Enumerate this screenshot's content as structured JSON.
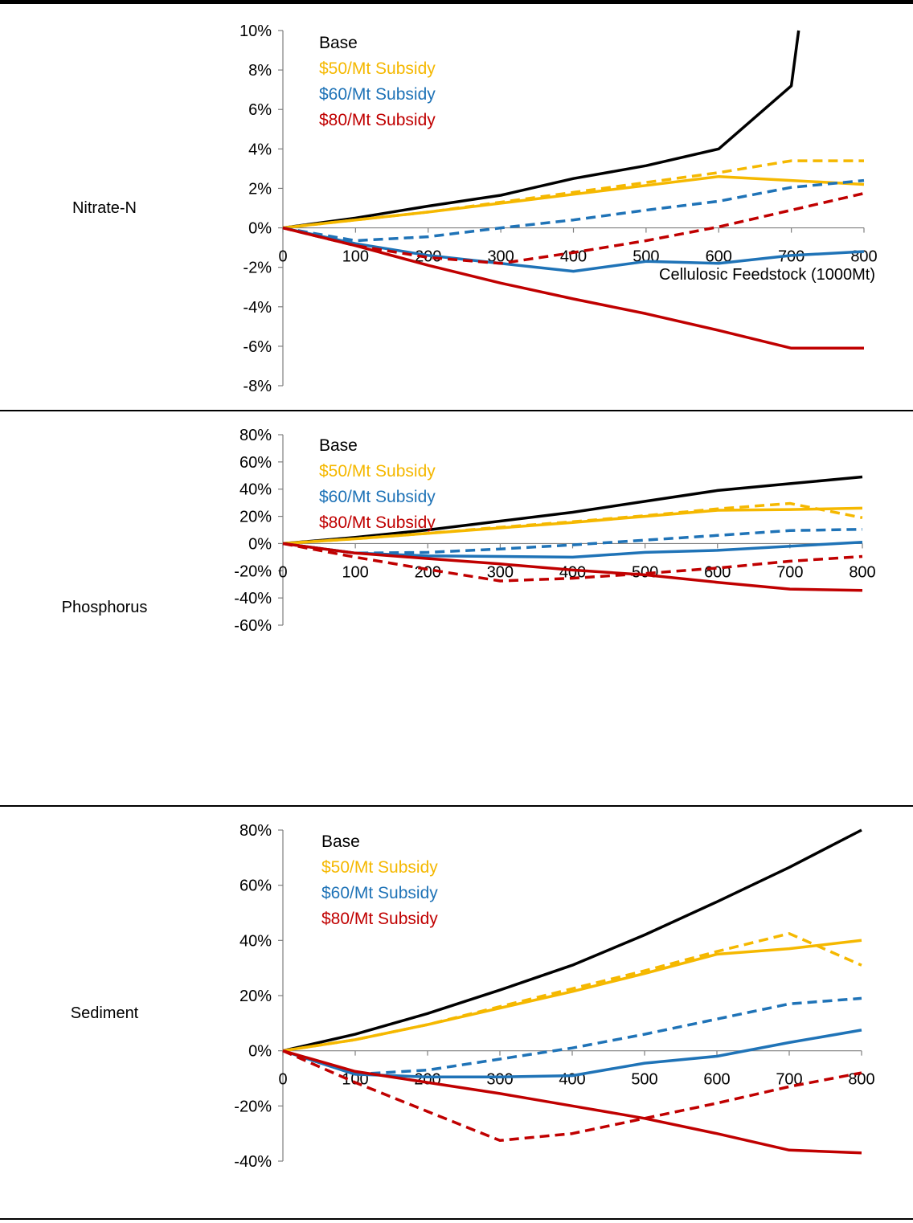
{
  "legend": [
    {
      "label": "Base",
      "color": "#000000"
    },
    {
      "label": "$50/Mt Subsidy",
      "color": "#F5B800"
    },
    {
      "label": "$60/Mt Subsidy",
      "color": "#1F73B7"
    },
    {
      "label": "$80/Mt Subsidy",
      "color": "#C00000"
    }
  ],
  "chart_data": [
    {
      "type": "line",
      "row_label": "Nitrate-N",
      "xlabel": "Cellulosic Feedstock (1000Mt)",
      "ylabel": "",
      "ylim": [
        -0.08,
        0.1
      ],
      "yticks": [
        -0.08,
        -0.06,
        -0.04,
        -0.02,
        0,
        0.02,
        0.04,
        0.06,
        0.08,
        0.1
      ],
      "ytick_labels": [
        "-8%",
        "-6%",
        "-4%",
        "-2%",
        "0%",
        "2%",
        "4%",
        "6%",
        "8%",
        "10%"
      ],
      "xticks": [
        0,
        100,
        200,
        300,
        400,
        500,
        600,
        700,
        800
      ],
      "xtick_labels": [
        "0",
        "100",
        "200",
        "300",
        "400",
        "500",
        "600",
        "700",
        "800"
      ],
      "series": [
        {
          "name": "Base",
          "color": "#000000",
          "dash": false,
          "x": [
            0,
            100,
            200,
            300,
            400,
            500,
            600,
            700,
            710
          ],
          "y": [
            0,
            0.005,
            0.011,
            0.0165,
            0.025,
            0.0315,
            0.04,
            0.072,
            0.1
          ]
        },
        {
          "name": "$50/Mt Subsidy",
          "color": "#F5B800",
          "dash": false,
          "x": [
            0,
            100,
            200,
            300,
            400,
            500,
            600,
            700,
            800
          ],
          "y": [
            0,
            0.004,
            0.008,
            0.0125,
            0.017,
            0.0215,
            0.026,
            0.024,
            0.022
          ]
        },
        {
          "name": "$50/Mt Subsidy",
          "color": "#F5B800",
          "dash": true,
          "x": [
            0,
            100,
            200,
            300,
            400,
            500,
            600,
            700,
            800
          ],
          "y": [
            0,
            0.004,
            0.008,
            0.013,
            0.018,
            0.023,
            0.028,
            0.034,
            0.034
          ]
        },
        {
          "name": "$60/Mt Subsidy",
          "color": "#1F73B7",
          "dash": false,
          "x": [
            0,
            100,
            200,
            300,
            400,
            500,
            600,
            700,
            800
          ],
          "y": [
            0,
            -0.008,
            -0.014,
            -0.018,
            -0.022,
            -0.017,
            -0.018,
            -0.014,
            -0.012
          ]
        },
        {
          "name": "$60/Mt Subsidy",
          "color": "#1F73B7",
          "dash": true,
          "x": [
            0,
            100,
            200,
            300,
            400,
            500,
            600,
            700,
            800
          ],
          "y": [
            0,
            -0.0065,
            -0.0045,
            0,
            0.004,
            0.009,
            0.0135,
            0.0205,
            0.024
          ]
        },
        {
          "name": "$80/Mt Subsidy",
          "color": "#C00000",
          "dash": false,
          "x": [
            0,
            100,
            200,
            300,
            400,
            500,
            600,
            700,
            800
          ],
          "y": [
            0,
            -0.009,
            -0.019,
            -0.028,
            -0.036,
            -0.0435,
            -0.052,
            -0.061,
            -0.061
          ]
        },
        {
          "name": "$80/Mt Subsidy",
          "color": "#C00000",
          "dash": true,
          "x": [
            0,
            100,
            200,
            300,
            400,
            500,
            600,
            700,
            800
          ],
          "y": [
            0,
            -0.009,
            -0.015,
            -0.018,
            -0.0125,
            -0.0065,
            0.0005,
            0.009,
            0.0175
          ]
        }
      ]
    },
    {
      "type": "line",
      "row_label": "Phosphorus",
      "xlabel": "",
      "ylabel": "",
      "ylim": [
        -0.6,
        0.8
      ],
      "yticks": [
        -0.6,
        -0.4,
        -0.2,
        0,
        0.2,
        0.4,
        0.6,
        0.8
      ],
      "ytick_labels": [
        "-60%",
        "-40%",
        "-20%",
        "0%",
        "20%",
        "40%",
        "60%",
        "80%"
      ],
      "xticks": [
        0,
        100,
        200,
        300,
        400,
        500,
        600,
        700,
        800
      ],
      "xtick_labels": [
        "0",
        "100",
        "200",
        "300",
        "400",
        "500",
        "600",
        "700",
        "800"
      ],
      "series": [
        {
          "name": "Base",
          "color": "#000000",
          "dash": false,
          "x": [
            0,
            100,
            200,
            300,
            400,
            500,
            600,
            700,
            800
          ],
          "y": [
            0,
            0.045,
            0.1,
            0.165,
            0.23,
            0.31,
            0.39,
            0.44,
            0.49
          ]
        },
        {
          "name": "$50/Mt Subsidy",
          "color": "#F5B800",
          "dash": false,
          "x": [
            0,
            100,
            200,
            300,
            400,
            500,
            600,
            700,
            800
          ],
          "y": [
            0,
            0.035,
            0.075,
            0.115,
            0.155,
            0.2,
            0.245,
            0.25,
            0.26
          ]
        },
        {
          "name": "$50/Mt Subsidy",
          "color": "#F5B800",
          "dash": true,
          "x": [
            0,
            100,
            200,
            300,
            400,
            500,
            600,
            700,
            800
          ],
          "y": [
            0,
            0.035,
            0.075,
            0.12,
            0.16,
            0.205,
            0.255,
            0.295,
            0.19
          ]
        },
        {
          "name": "$60/Mt Subsidy",
          "color": "#1F73B7",
          "dash": false,
          "x": [
            0,
            100,
            200,
            300,
            400,
            500,
            600,
            700,
            800
          ],
          "y": [
            0,
            -0.07,
            -0.09,
            -0.095,
            -0.1,
            -0.065,
            -0.05,
            -0.02,
            0.01
          ]
        },
        {
          "name": "$60/Mt Subsidy",
          "color": "#1F73B7",
          "dash": true,
          "x": [
            0,
            100,
            200,
            300,
            400,
            500,
            600,
            700,
            800
          ],
          "y": [
            0,
            -0.07,
            -0.065,
            -0.04,
            -0.01,
            0.025,
            0.06,
            0.095,
            0.105
          ]
        },
        {
          "name": "$80/Mt Subsidy",
          "color": "#C00000",
          "dash": false,
          "x": [
            0,
            100,
            200,
            300,
            400,
            500,
            600,
            700,
            800
          ],
          "y": [
            0,
            -0.07,
            -0.11,
            -0.15,
            -0.195,
            -0.23,
            -0.285,
            -0.335,
            -0.345
          ]
        },
        {
          "name": "$80/Mt Subsidy",
          "color": "#C00000",
          "dash": true,
          "x": [
            0,
            100,
            200,
            300,
            400,
            500,
            600,
            700,
            800
          ],
          "y": [
            0,
            -0.1,
            -0.19,
            -0.275,
            -0.255,
            -0.22,
            -0.18,
            -0.13,
            -0.095
          ]
        }
      ]
    },
    {
      "type": "line",
      "row_label": "Sediment",
      "xlabel": "",
      "ylabel": "",
      "ylim": [
        -0.4,
        0.8
      ],
      "yticks": [
        -0.4,
        -0.2,
        0,
        0.2,
        0.4,
        0.6,
        0.8
      ],
      "ytick_labels": [
        "-40%",
        "-20%",
        "0%",
        "20%",
        "40%",
        "60%",
        "80%"
      ],
      "xticks": [
        0,
        100,
        200,
        300,
        400,
        500,
        600,
        700,
        800
      ],
      "xtick_labels": [
        "0",
        "100",
        "200",
        "300",
        "400",
        "500",
        "600",
        "700",
        "800"
      ],
      "series": [
        {
          "name": "Base",
          "color": "#000000",
          "dash": false,
          "x": [
            0,
            100,
            200,
            300,
            400,
            500,
            600,
            700,
            800
          ],
          "y": [
            0,
            0.06,
            0.135,
            0.22,
            0.31,
            0.42,
            0.54,
            0.665,
            0.8
          ]
        },
        {
          "name": "$50/Mt Subsidy",
          "color": "#F5B800",
          "dash": false,
          "x": [
            0,
            100,
            200,
            300,
            400,
            500,
            600,
            700,
            800
          ],
          "y": [
            0,
            0.04,
            0.095,
            0.155,
            0.215,
            0.28,
            0.35,
            0.37,
            0.4
          ]
        },
        {
          "name": "$50/Mt Subsidy",
          "color": "#F5B800",
          "dash": true,
          "x": [
            0,
            100,
            200,
            300,
            400,
            500,
            600,
            700,
            800
          ],
          "y": [
            0,
            0.04,
            0.095,
            0.16,
            0.225,
            0.29,
            0.36,
            0.425,
            0.31
          ]
        },
        {
          "name": "$60/Mt Subsidy",
          "color": "#1F73B7",
          "dash": false,
          "x": [
            0,
            100,
            200,
            300,
            400,
            500,
            600,
            700,
            800
          ],
          "y": [
            0,
            -0.085,
            -0.095,
            -0.095,
            -0.09,
            -0.045,
            -0.02,
            0.03,
            0.075
          ]
        },
        {
          "name": "$60/Mt Subsidy",
          "color": "#1F73B7",
          "dash": true,
          "x": [
            0,
            100,
            200,
            300,
            400,
            500,
            600,
            700,
            800
          ],
          "y": [
            0,
            -0.085,
            -0.07,
            -0.03,
            0.01,
            0.06,
            0.115,
            0.17,
            0.19
          ]
        },
        {
          "name": "$80/Mt Subsidy",
          "color": "#C00000",
          "dash": false,
          "x": [
            0,
            100,
            200,
            300,
            400,
            500,
            600,
            700,
            800
          ],
          "y": [
            0,
            -0.075,
            -0.115,
            -0.155,
            -0.2,
            -0.245,
            -0.3,
            -0.36,
            -0.37
          ]
        },
        {
          "name": "$80/Mt Subsidy",
          "color": "#C00000",
          "dash": true,
          "x": [
            0,
            100,
            200,
            300,
            400,
            500,
            600,
            700,
            800
          ],
          "y": [
            0,
            -0.115,
            -0.22,
            -0.325,
            -0.3,
            -0.245,
            -0.19,
            -0.13,
            -0.08
          ]
        }
      ]
    }
  ]
}
